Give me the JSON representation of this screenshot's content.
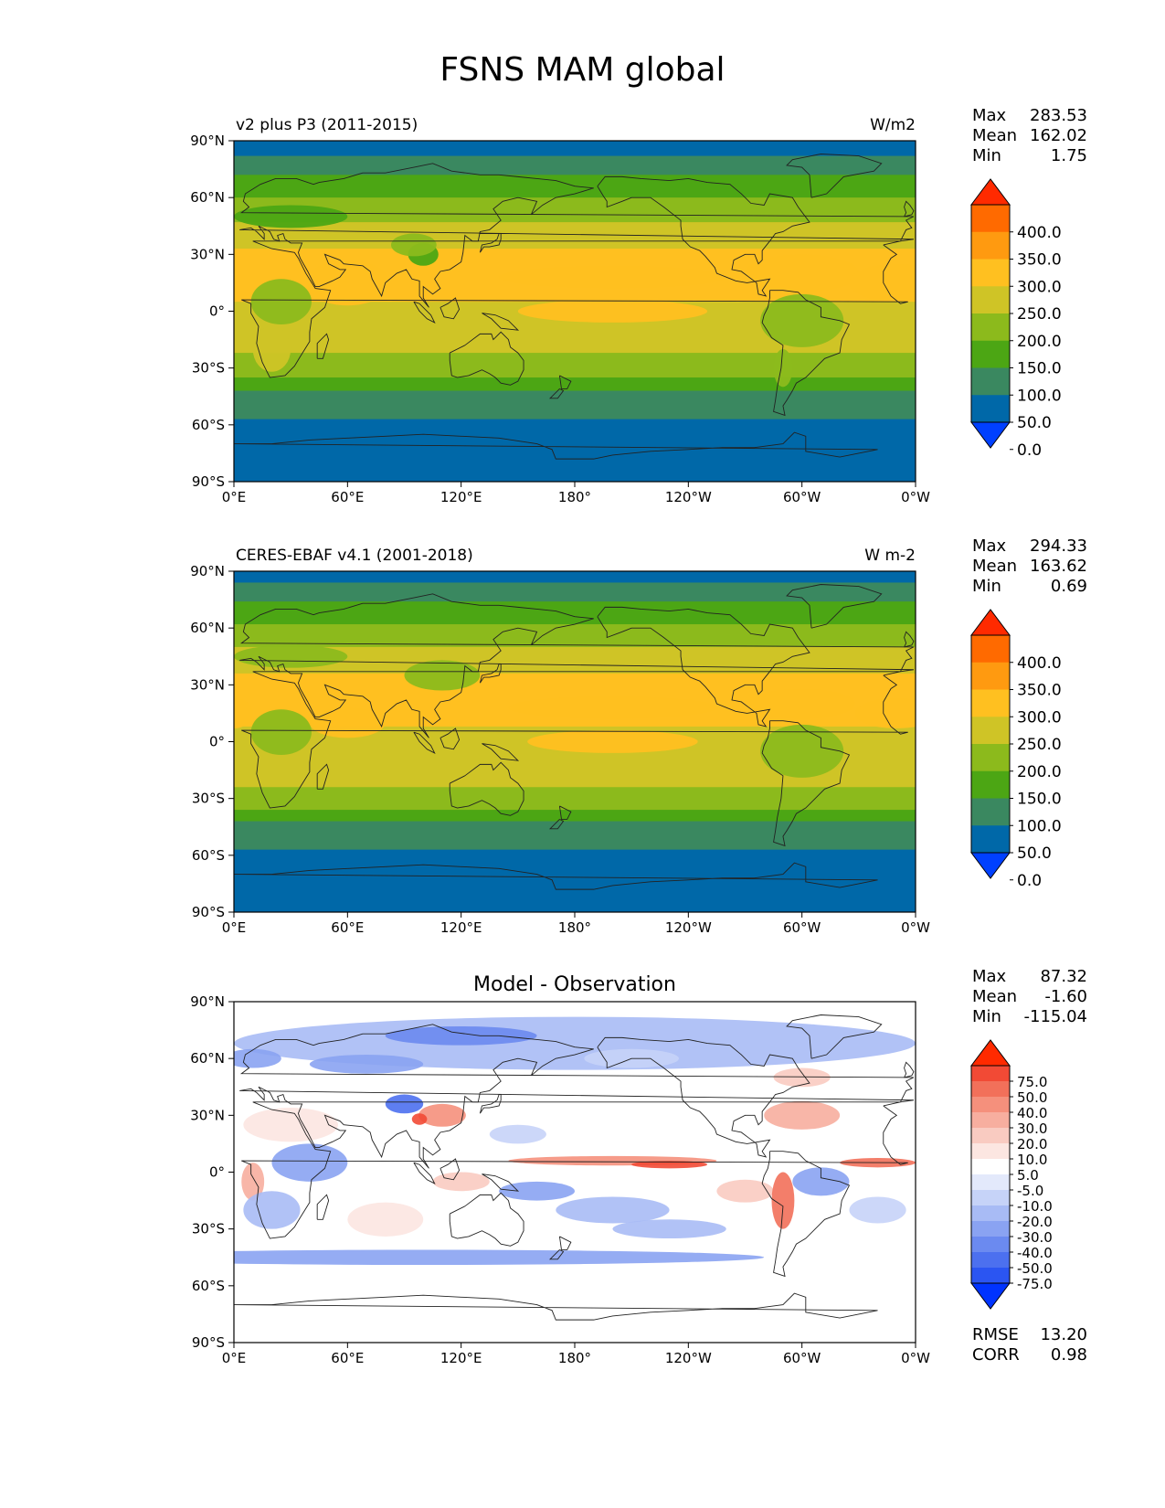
{
  "figure": {
    "title": "FSNS MAM global"
  },
  "axes": {
    "xticks": [
      "0°E",
      "60°E",
      "120°E",
      "180°",
      "120°W",
      "60°W",
      "0°W"
    ],
    "yticks": [
      "90°N",
      "60°N",
      "30°N",
      "0°",
      "30°S",
      "60°S",
      "90°S"
    ]
  },
  "chart_data": [
    {
      "type": "heatmap",
      "title_left": "v2 plus P3 (2011-2015)",
      "title_right": "W/m2",
      "title_center": "",
      "xlim": [
        0,
        360
      ],
      "ylim": [
        -90,
        90
      ],
      "stats": [
        {
          "label": "Max",
          "value": "283.53"
        },
        {
          "label": "Mean",
          "value": "162.02"
        },
        {
          "label": "Min",
          "value": "1.75"
        }
      ],
      "colorbar": {
        "labels": [
          "400.0",
          "350.0",
          "300.0",
          "250.0",
          "200.0",
          "150.0",
          "100.0",
          "50.0",
          "0.0"
        ],
        "colors": [
          "#ff2a00",
          "#ff6a00",
          "#ff9a10",
          "#ffc020",
          "#cfc426",
          "#8cba1c",
          "#4ca614",
          "#3a8860",
          "#0068a8",
          "#0040ff"
        ]
      }
    },
    {
      "type": "heatmap",
      "title_left": "CERES-EBAF v4.1 (2001-2018)",
      "title_right": "W m-2",
      "title_center": "",
      "xlim": [
        0,
        360
      ],
      "ylim": [
        -90,
        90
      ],
      "stats": [
        {
          "label": "Max",
          "value": "294.33"
        },
        {
          "label": "Mean",
          "value": "163.62"
        },
        {
          "label": "Min",
          "value": "0.69"
        }
      ],
      "colorbar": {
        "labels": [
          "400.0",
          "350.0",
          "300.0",
          "250.0",
          "200.0",
          "150.0",
          "100.0",
          "50.0",
          "0.0"
        ],
        "colors": [
          "#ff2a00",
          "#ff6a00",
          "#ff9a10",
          "#ffc020",
          "#cfc426",
          "#8cba1c",
          "#4ca614",
          "#3a8860",
          "#0068a8",
          "#0040ff"
        ]
      }
    },
    {
      "type": "heatmap",
      "title_left": "",
      "title_right": "",
      "title_center": "Model - Observation",
      "xlim": [
        0,
        360
      ],
      "ylim": [
        -90,
        90
      ],
      "stats": [
        {
          "label": "Max",
          "value": "87.32"
        },
        {
          "label": "Mean",
          "value": "-1.60"
        },
        {
          "label": "Min",
          "value": "-115.04"
        }
      ],
      "metrics": [
        {
          "label": "RMSE",
          "value": "13.20"
        },
        {
          "label": "CORR",
          "value": "0.98"
        }
      ],
      "colorbar": {
        "labels": [
          "75.0",
          "50.0",
          "40.0",
          "30.0",
          "20.0",
          "10.0",
          "5.0",
          "-5.0",
          "-10.0",
          "-20.0",
          "-30.0",
          "-40.0",
          "-50.0",
          "-75.0"
        ],
        "colors": [
          "#ff2a00",
          "#f24a35",
          "#f2705a",
          "#f5907c",
          "#f7ae9f",
          "#f9cbc1",
          "#fce6e1",
          "#ffffff",
          "#e3e9fb",
          "#c6d3f8",
          "#a8bbf5",
          "#8aa3f2",
          "#6b8af0",
          "#4c70ef",
          "#2b55f2",
          "#0033ff"
        ]
      }
    }
  ]
}
